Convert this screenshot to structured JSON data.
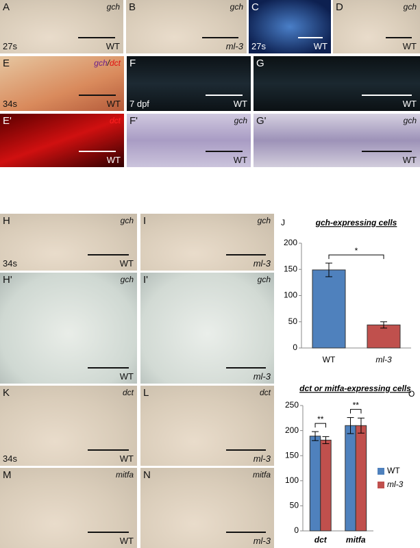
{
  "panels": [
    {
      "letter": "A",
      "gene": "gch",
      "genotype": "WT",
      "stage": "27s"
    },
    {
      "letter": "B",
      "gene": "gch",
      "genotype": "ml-3"
    },
    {
      "letter": "C",
      "genotype": "WT",
      "stage": "27s"
    },
    {
      "letter": "D",
      "gene": "gch",
      "genotype": "WT"
    },
    {
      "letter": "E",
      "gene": "gch",
      "separator": "/",
      "gene2": "dct",
      "genotype": "WT",
      "stage": "34s"
    },
    {
      "letter": "F",
      "genotype": "WT",
      "stage": "7 dpf"
    },
    {
      "letter": "G",
      "genotype": "WT"
    },
    {
      "letter": "E'",
      "gene": "dct",
      "genotype": "WT"
    },
    {
      "letter": "F'",
      "gene": "gch",
      "genotype": "WT"
    },
    {
      "letter": "G'",
      "gene": "gch",
      "genotype": "WT"
    },
    {
      "letter": "H",
      "gene": "gch",
      "genotype": "WT",
      "stage": "34s"
    },
    {
      "letter": "I",
      "gene": "gch",
      "genotype": "ml-3"
    },
    {
      "letter": "H'",
      "gene": "gch",
      "genotype": "WT"
    },
    {
      "letter": "I'",
      "gene": "gch",
      "genotype": "ml-3"
    },
    {
      "letter": "K",
      "gene": "dct",
      "genotype": "WT",
      "stage": "34s"
    },
    {
      "letter": "L",
      "gene": "dct",
      "genotype": "ml-3"
    },
    {
      "letter": "M",
      "gene": "mitfa",
      "genotype": "WT"
    },
    {
      "letter": "N",
      "gene": "mitfa",
      "genotype": "ml-3"
    }
  ],
  "chart_data": [
    {
      "type": "bar",
      "panel_label": "J",
      "title": "gch-expressing cells",
      "categories": [
        "WT",
        "ml-3"
      ],
      "values": [
        149,
        44
      ],
      "errors": [
        13,
        6
      ],
      "colors": [
        "#4f81bd",
        "#c0504d"
      ],
      "ylim": [
        0,
        200
      ],
      "yticks": [
        0,
        50,
        100,
        150,
        200
      ],
      "significance": "*"
    },
    {
      "type": "grouped_bar",
      "panel_label": "O",
      "title": "dct or mitfa-expressing cells",
      "categories": [
        "dct",
        "mitfa"
      ],
      "series": [
        {
          "name": "WT",
          "color": "#4f81bd",
          "values": [
            189,
            210
          ],
          "errors": [
            9,
            16
          ]
        },
        {
          "name": "ml-3",
          "color": "#c0504d",
          "values": [
            181,
            210
          ],
          "errors": [
            7,
            15
          ]
        }
      ],
      "ylim": [
        0,
        250
      ],
      "yticks": [
        0,
        50,
        100,
        150,
        200,
        250
      ],
      "significance": [
        "**",
        "**"
      ],
      "legend": "right"
    }
  ]
}
